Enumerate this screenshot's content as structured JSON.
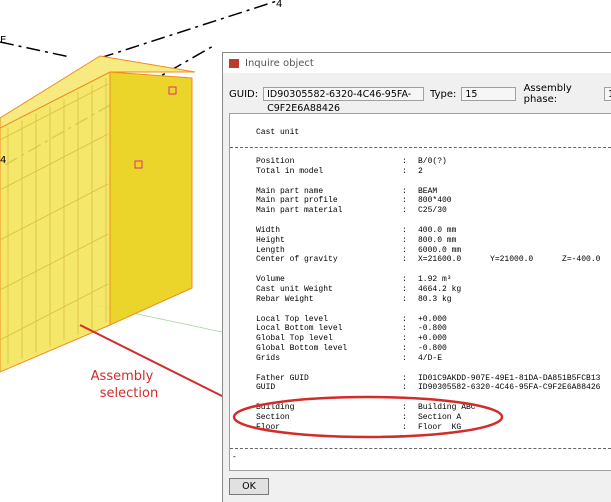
{
  "view": {
    "axis_labels": [
      "E",
      "4",
      "4"
    ]
  },
  "annotation": {
    "lines": [
      "Assembly",
      "selection"
    ]
  },
  "dialog": {
    "title": "Inquire object",
    "guid_label": "GUID:",
    "guid": "ID90305582-6320-4C46-95FA-C9F2E6A88426",
    "type_label": "Type:",
    "type": "15",
    "phase_label": "Assembly phase:",
    "phase": "1",
    "report_title": "Cast unit",
    "separator": ":",
    "groups": [
      [
        [
          "Position",
          "B/0(?)"
        ],
        [
          "Total in model",
          "2"
        ]
      ],
      [
        [
          "Main part name",
          "BEAM"
        ],
        [
          "Main part profile",
          "800*400"
        ],
        [
          "Main part material",
          "C25/30"
        ]
      ],
      [
        [
          "Width",
          "400.0 mm"
        ],
        [
          "Height",
          "800.0 mm"
        ],
        [
          "Length",
          "6000.0 mm"
        ],
        [
          "Center of gravity",
          "X=21600.0      Y=21000.0      Z=-400.0"
        ]
      ],
      [
        [
          "Volume",
          "1.92 m³"
        ],
        [
          "Cast unit Weight",
          "4664.2 kg"
        ],
        [
          "Rebar Weight",
          "80.3 kg"
        ]
      ],
      [
        [
          "Local Top level",
          "+0.000"
        ],
        [
          "Local Bottom level",
          "-0.800"
        ],
        [
          "Global Top level",
          "+0.000"
        ],
        [
          "Global Bottom level",
          "-0.800"
        ],
        [
          "Grids",
          "4/D-E"
        ]
      ],
      [
        [
          "Father GUID",
          "ID01C9AKDD-907E-49E1-81DA-DA851B5FCB13"
        ],
        [
          "GUID",
          "ID90305582-6320-4C46-95FA-C9F2E6A88426"
        ]
      ],
      [
        [
          "Building",
          "Building ABC"
        ],
        [
          "Section",
          "Section A"
        ],
        [
          "Floor",
          "Floor  KG"
        ]
      ]
    ],
    "end_mark": "-",
    "ok": "OK"
  }
}
